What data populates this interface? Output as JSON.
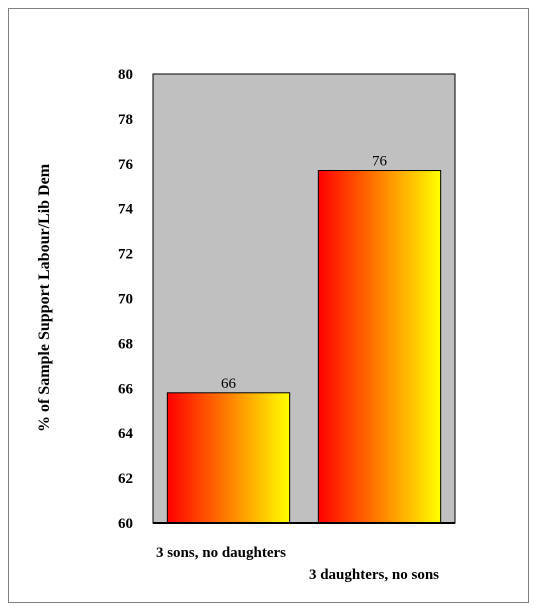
{
  "chart_data": {
    "type": "bar",
    "categories": [
      "3 sons, no daughters",
      "3 daughters, no sons"
    ],
    "values": [
      65.8,
      75.7
    ],
    "data_labels": [
      "66",
      "76"
    ],
    "xlabel": "",
    "ylabel": "% of Sample Support Labour/Lib Dem",
    "ylim": [
      60,
      80
    ],
    "yticks": [
      "60",
      "62",
      "64",
      "66",
      "68",
      "70",
      "72",
      "74",
      "76",
      "78",
      "80"
    ],
    "grid": false,
    "legend": "none",
    "plot_background": "#c0c0c0",
    "bar_gradient": [
      "#ff0000",
      "#ff8000",
      "#ffff00"
    ]
  }
}
